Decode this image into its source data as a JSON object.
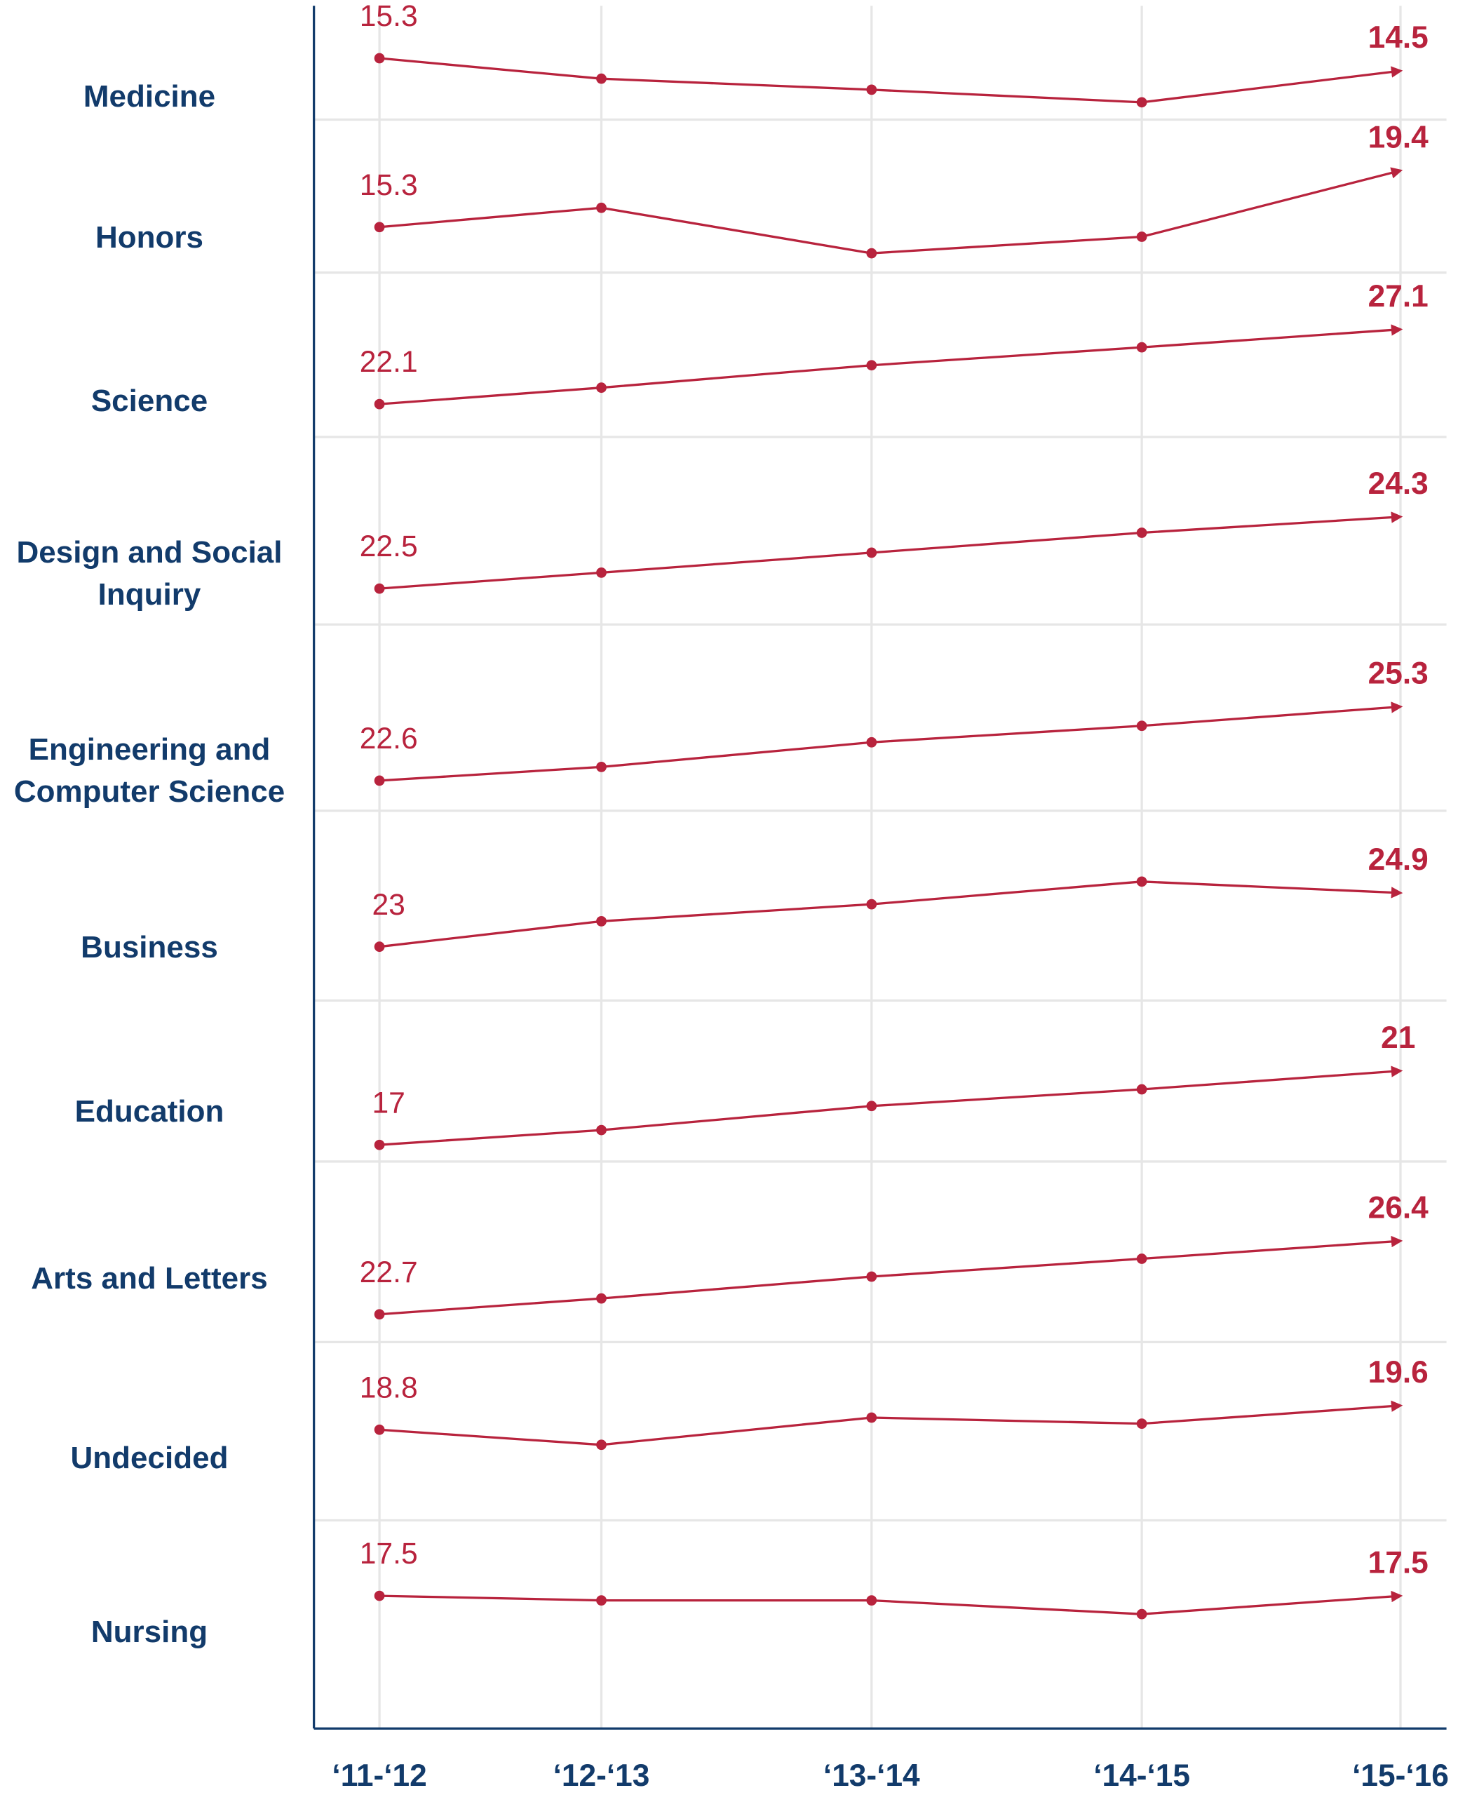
{
  "chart_data": {
    "type": "line",
    "x": [
      "‘11-‘12",
      "‘12-‘13",
      "‘13-‘14",
      "‘14-‘15",
      "‘15-‘16"
    ],
    "grid": true,
    "series": [
      {
        "name": "Medicine",
        "color": "#b8233d",
        "values": [
          15.3,
          14.0,
          13.3,
          12.5,
          14.5
        ],
        "ylim": [
          11.4,
          19.0
        ]
      },
      {
        "name": "Honors",
        "color": "#b8233d",
        "values": [
          15.3,
          16.7,
          13.4,
          14.6,
          19.4
        ],
        "ylim": [
          12.0,
          23.1
        ]
      },
      {
        "name": "Science",
        "color": "#b8233d",
        "values": [
          22.1,
          23.2,
          24.7,
          25.9,
          27.1
        ],
        "ylim": [
          19.9,
          30.9
        ]
      },
      {
        "name": "Design and Social Inquiry",
        "color": "#b8233d",
        "values": [
          22.5,
          22.9,
          23.4,
          23.9,
          24.3
        ],
        "ylim": [
          21.6,
          26.3
        ]
      },
      {
        "name": "Engineering and Computer Science",
        "color": "#b8233d",
        "values": [
          22.6,
          23.1,
          24.0,
          24.6,
          25.3
        ],
        "ylim": [
          21.5,
          28.3
        ]
      },
      {
        "name": "Business",
        "color": "#b8233d",
        "values": [
          23,
          23.9,
          24.5,
          25.3,
          24.9
        ],
        "ylim": [
          21.1,
          27.8
        ]
      },
      {
        "name": "Education",
        "color": "#b8233d",
        "values": [
          17,
          17.8,
          19.1,
          20.0,
          21
        ],
        "ylim": [
          16.1,
          24.8
        ]
      },
      {
        "name": "Arts and Letters",
        "color": "#b8233d",
        "values": [
          22.7,
          23.5,
          24.6,
          25.5,
          26.4
        ],
        "ylim": [
          21.3,
          30.4
        ]
      },
      {
        "name": "Undecided",
        "color": "#b8233d",
        "values": [
          18.8,
          18.3,
          19.2,
          19.0,
          19.6
        ],
        "ylim": [
          15.8,
          21.7
        ]
      },
      {
        "name": "Nursing",
        "color": "#b8233d",
        "values": [
          17.5,
          17.3,
          17.3,
          16.7,
          17.5
        ],
        "ylim": [
          11.7,
          20.8
        ]
      }
    ]
  }
}
